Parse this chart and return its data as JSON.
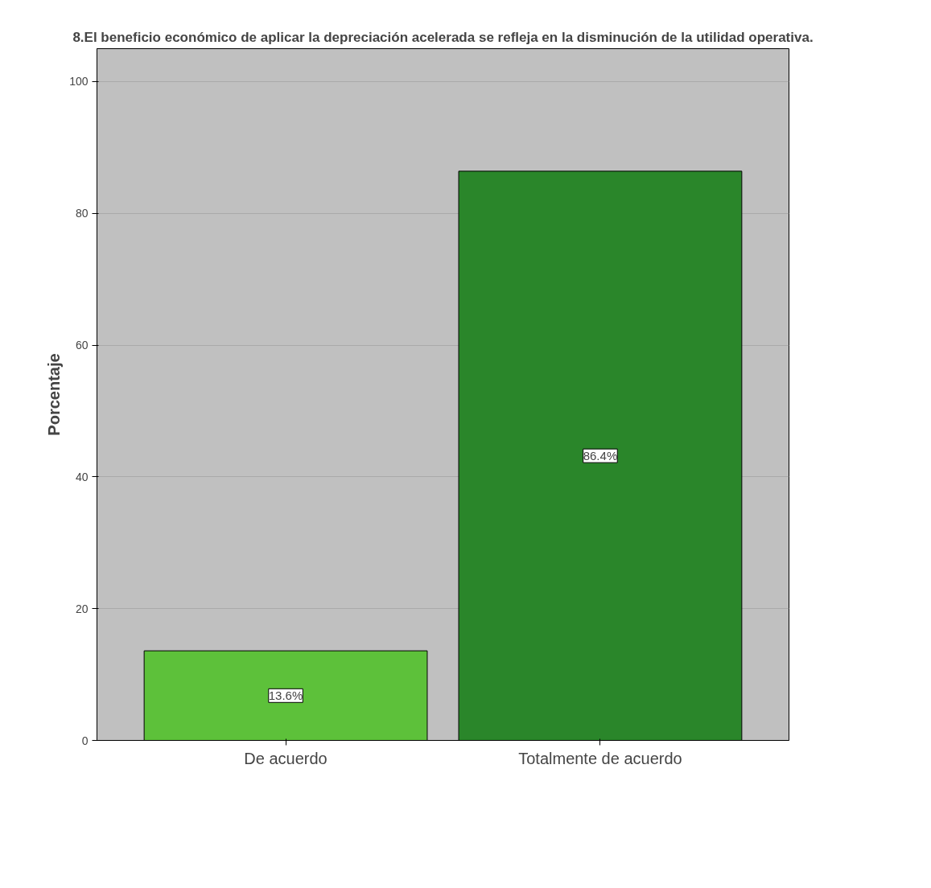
{
  "chart_data": {
    "type": "bar",
    "title": "8.El beneficio económico de aplicar la depreciación acelerada se refleja en la disminución de la utilidad operativa.",
    "ylabel": "Porcentaje",
    "categories": [
      "De acuerdo",
      "Totalmente de acuerdo"
    ],
    "values": [
      13.6,
      86.4
    ],
    "colors": [
      "#5dc13a",
      "#2a862a"
    ],
    "value_labels": [
      "13.6%",
      "86.4%"
    ],
    "ylim": [
      0,
      105
    ],
    "yticks": [
      0,
      20,
      40,
      60,
      80,
      100
    ],
    "grid": "y"
  }
}
